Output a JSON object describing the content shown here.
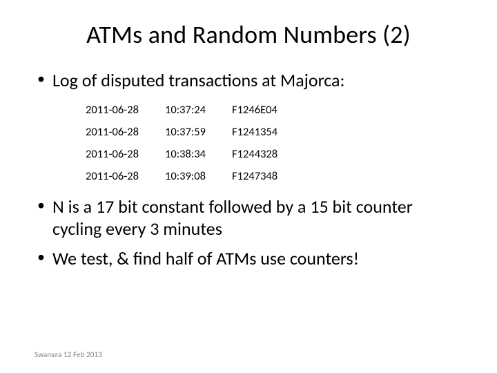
{
  "title": "ATMs and Random Numbers (2)",
  "bullets": {
    "b1": "Log of disputed transactions at Majorca:",
    "b2": "N is a 17 bit constant followed by a 15 bit counter cycling every 3 minutes",
    "b3": "We test, & find half of ATMs use counters!"
  },
  "log_table": {
    "type": "table",
    "columns": [
      "date",
      "time",
      "code"
    ],
    "rows": [
      [
        "2011-06-28",
        "10:37:24",
        "F1246E04"
      ],
      [
        "2011-06-28",
        "10:37:59",
        "F1241354"
      ],
      [
        "2011-06-28",
        "10:38:34",
        "F1244328"
      ],
      [
        "2011-06-28",
        "10:39:08",
        "F1247348"
      ]
    ],
    "font_size": 16.5,
    "text_color": "#000000",
    "cell_padding_right": 38
  },
  "footer": "Swansea 12 Feb 2013",
  "style": {
    "background_color": "#ffffff",
    "title_fontsize": 36,
    "bullet_fontsize": 26,
    "footer_fontsize": 11,
    "footer_color": "#808080",
    "text_color": "#000000",
    "font_family": "Calibri, Arial, sans-serif"
  }
}
